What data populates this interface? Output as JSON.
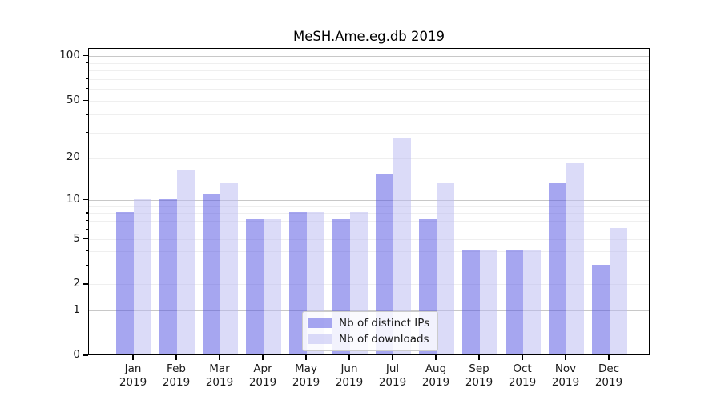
{
  "title": "MeSH.Ame.eg.db 2019",
  "chart_data": {
    "type": "bar",
    "title": "MeSH.Ame.eg.db 2019",
    "yscale": "log1p",
    "grid": true,
    "legend_position": "lower center",
    "categories": [
      "Jan 2019",
      "Feb 2019",
      "Mar 2019",
      "Apr 2019",
      "May 2019",
      "Jun 2019",
      "Jul 2019",
      "Aug 2019",
      "Sep 2019",
      "Oct 2019",
      "Nov 2019",
      "Dec 2019"
    ],
    "series": [
      {
        "name": "Nb of distinct IPs",
        "color": "rgba(77,77,226,0.5)",
        "values": [
          8,
          10,
          11,
          7,
          8,
          7,
          15,
          7,
          4,
          4,
          13,
          3
        ]
      },
      {
        "name": "Nb of downloads",
        "color": "rgba(184,184,242,0.5)",
        "values": [
          10,
          16,
          13,
          7,
          8,
          8,
          27,
          13,
          4,
          4,
          18,
          6
        ]
      }
    ],
    "ytick_labels": [
      0,
      1,
      2,
      5,
      10,
      20,
      50,
      100
    ],
    "major_gridlines": [
      1,
      10,
      100
    ],
    "minor_gridlines": [
      2,
      3,
      4,
      5,
      6,
      7,
      8,
      9,
      20,
      30,
      40,
      50,
      60,
      70,
      80,
      90
    ],
    "ylim": [
      0,
      113
    ],
    "xlabel": "",
    "ylabel": "",
    "colors": {
      "major_grid": "#c8c8c8",
      "minor_grid": "#efefef",
      "spine": "#000000",
      "text": "#1a1a1a"
    }
  }
}
